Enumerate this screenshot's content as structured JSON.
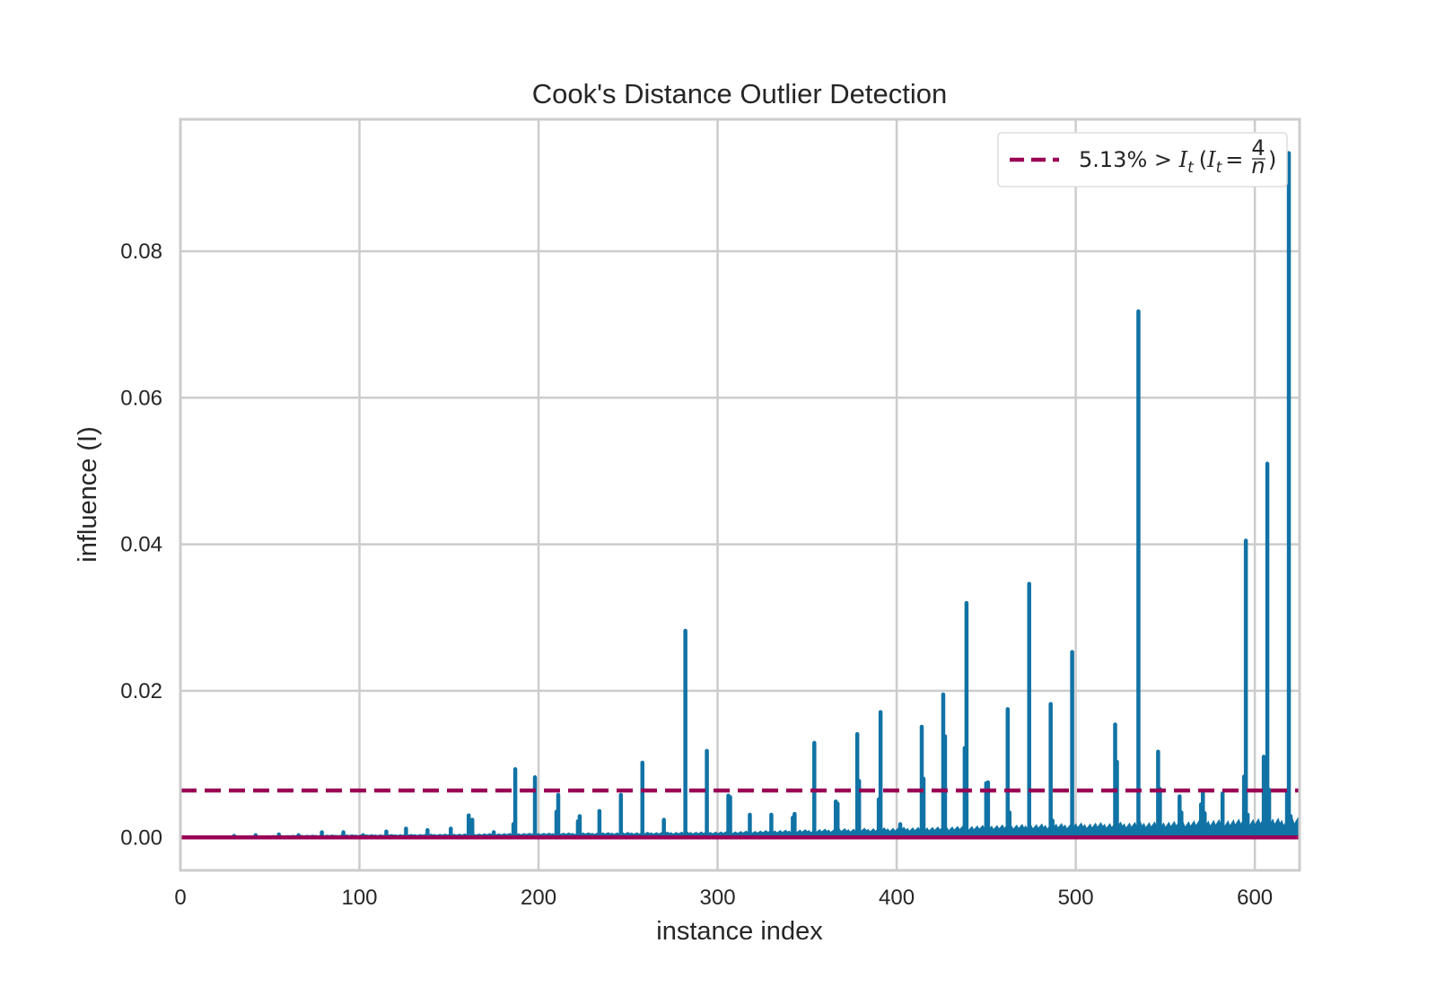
{
  "chart_data": {
    "type": "line",
    "title": "Cook's Distance Outlier Detection",
    "xlabel": "instance index",
    "ylabel": "influence (I)",
    "xlim": [
      0,
      625
    ],
    "ylim": [
      -0.0045,
      0.098
    ],
    "grid": true,
    "x_ticks": [
      0,
      100,
      200,
      300,
      400,
      500,
      600
    ],
    "y_ticks": [
      "0.00",
      "0.02",
      "0.04",
      "0.06",
      "0.08"
    ],
    "legend_position": "top-right",
    "legend": {
      "prefix": "5.13% > ",
      "var": "I",
      "sub": "t",
      "num": "4",
      "den": "n"
    },
    "threshold": 0.0064,
    "baseline": 0.0,
    "colors": {
      "stems": "#1173a5",
      "threshold": "#990055",
      "baseline": "#990055",
      "grid": "#cccccc"
    },
    "spikes": [
      {
        "x": 30,
        "y": 0.0002
      },
      {
        "x": 42,
        "y": 0.0003
      },
      {
        "x": 55,
        "y": 0.0004
      },
      {
        "x": 66,
        "y": 0.0003
      },
      {
        "x": 79,
        "y": 0.0007
      },
      {
        "x": 91,
        "y": 0.0007
      },
      {
        "x": 102,
        "y": 0.0003
      },
      {
        "x": 115,
        "y": 0.0008
      },
      {
        "x": 126,
        "y": 0.0012
      },
      {
        "x": 138,
        "y": 0.001
      },
      {
        "x": 151,
        "y": 0.0012
      },
      {
        "x": 161,
        "y": 0.003
      },
      {
        "x": 163,
        "y": 0.0024
      },
      {
        "x": 175,
        "y": 0.0007
      },
      {
        "x": 186,
        "y": 0.0018
      },
      {
        "x": 187,
        "y": 0.0093
      },
      {
        "x": 198,
        "y": 0.0082
      },
      {
        "x": 210,
        "y": 0.0035
      },
      {
        "x": 211,
        "y": 0.0058
      },
      {
        "x": 222,
        "y": 0.0022
      },
      {
        "x": 223,
        "y": 0.0029
      },
      {
        "x": 234,
        "y": 0.0036
      },
      {
        "x": 246,
        "y": 0.0058
      },
      {
        "x": 258,
        "y": 0.0102
      },
      {
        "x": 270,
        "y": 0.0024
      },
      {
        "x": 282,
        "y": 0.0282
      },
      {
        "x": 294,
        "y": 0.0118
      },
      {
        "x": 306,
        "y": 0.0057
      },
      {
        "x": 307,
        "y": 0.0055
      },
      {
        "x": 318,
        "y": 0.0031
      },
      {
        "x": 330,
        "y": 0.0031
      },
      {
        "x": 342,
        "y": 0.0027
      },
      {
        "x": 343,
        "y": 0.0032
      },
      {
        "x": 354,
        "y": 0.0129
      },
      {
        "x": 366,
        "y": 0.0049
      },
      {
        "x": 367,
        "y": 0.0046
      },
      {
        "x": 378,
        "y": 0.0141
      },
      {
        "x": 379,
        "y": 0.0077
      },
      {
        "x": 390,
        "y": 0.0052
      },
      {
        "x": 391,
        "y": 0.0171
      },
      {
        "x": 402,
        "y": 0.0018
      },
      {
        "x": 414,
        "y": 0.0151
      },
      {
        "x": 415,
        "y": 0.008
      },
      {
        "x": 426,
        "y": 0.0195
      },
      {
        "x": 427,
        "y": 0.0138
      },
      {
        "x": 438,
        "y": 0.0122
      },
      {
        "x": 439,
        "y": 0.032
      },
      {
        "x": 450,
        "y": 0.0074
      },
      {
        "x": 451,
        "y": 0.0075
      },
      {
        "x": 462,
        "y": 0.0175
      },
      {
        "x": 463,
        "y": 0.0034
      },
      {
        "x": 474,
        "y": 0.0346
      },
      {
        "x": 486,
        "y": 0.0182
      },
      {
        "x": 487,
        "y": 0.0023
      },
      {
        "x": 498,
        "y": 0.0253
      },
      {
        "x": 522,
        "y": 0.0154
      },
      {
        "x": 523,
        "y": 0.0103
      },
      {
        "x": 535,
        "y": 0.0718
      },
      {
        "x": 546,
        "y": 0.0117
      },
      {
        "x": 547,
        "y": 0.0066
      },
      {
        "x": 558,
        "y": 0.0056
      },
      {
        "x": 559,
        "y": 0.0034
      },
      {
        "x": 570,
        "y": 0.0045
      },
      {
        "x": 571,
        "y": 0.006
      },
      {
        "x": 572,
        "y": 0.0033
      },
      {
        "x": 582,
        "y": 0.006
      },
      {
        "x": 594,
        "y": 0.0083
      },
      {
        "x": 595,
        "y": 0.0405
      },
      {
        "x": 596,
        "y": 0.0031
      },
      {
        "x": 605,
        "y": 0.011
      },
      {
        "x": 607,
        "y": 0.051
      },
      {
        "x": 608,
        "y": 0.0065
      },
      {
        "x": 618,
        "y": 0.0063
      },
      {
        "x": 619,
        "y": 0.0934
      },
      {
        "x": 620,
        "y": 0.0029
      }
    ]
  }
}
